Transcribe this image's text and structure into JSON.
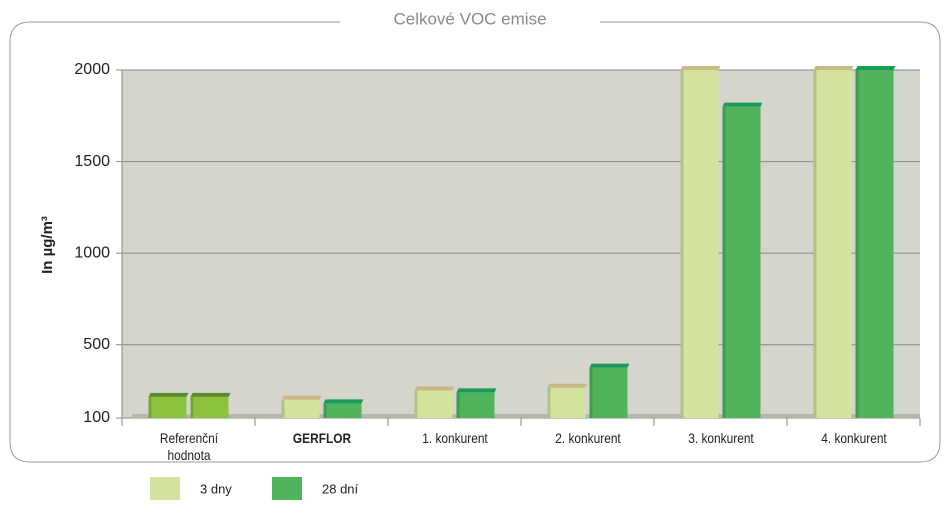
{
  "chart_data": {
    "type": "bar",
    "title": "Celkové VOC emise",
    "y_label": "In µg/m³",
    "categories": [
      "Referenční hodnota",
      "GERFLOR",
      "1. konkurent",
      "2. konkurent",
      "3. konkurent",
      "4. konkurent"
    ],
    "bold_category": 1,
    "series": [
      {
        "name": "3 dny",
        "color": "#d3e39e",
        "top_color": "#c7b98a",
        "colors": [
          "#8cc23e",
          "#d3e39e",
          "#d3e39e",
          "#d3e39e",
          "#d3e39e",
          "#d3e39e"
        ],
        "values": [
          215,
          200,
          250,
          265,
          2000,
          2000
        ]
      },
      {
        "name": "28 dní",
        "color": "#4fb45c",
        "top_color": "#1a9b5a",
        "colors": [
          "#8cc23e",
          "#4fb45c",
          "#4fb45c",
          "#4fb45c",
          "#4fb45c",
          "#4fb45c"
        ],
        "values": [
          215,
          180,
          240,
          375,
          1800,
          2000
        ]
      }
    ],
    "ylim": [
      100,
      2000
    ],
    "yticks": [
      100,
      500,
      1000,
      1500,
      2000
    ],
    "grid": true
  }
}
